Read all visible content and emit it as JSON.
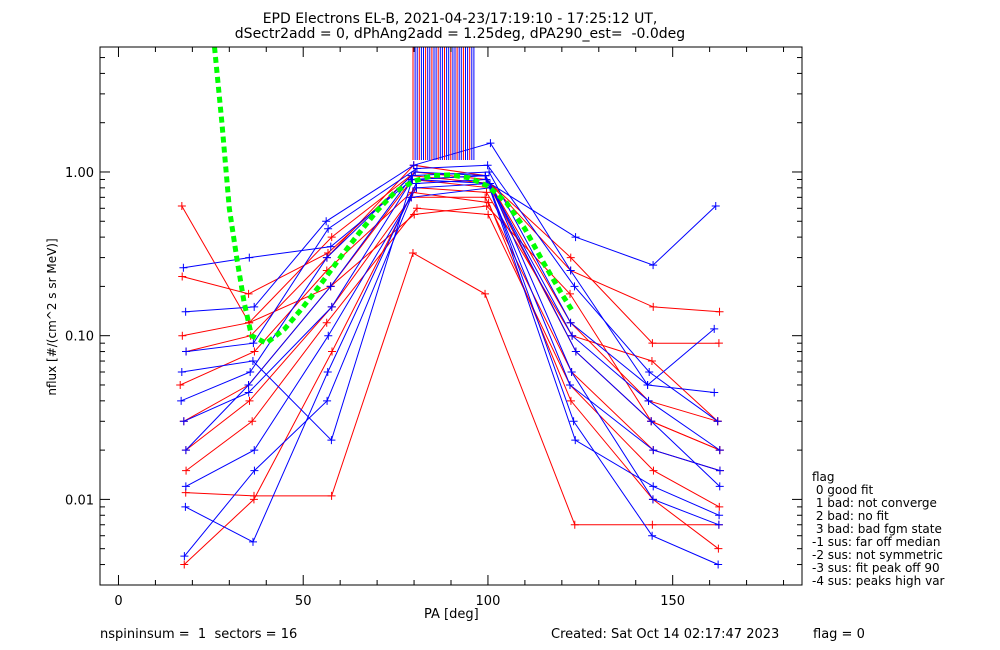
{
  "header": {
    "title_line1": "EPD Electrons EL-B, 2021-04-23/17:19:10 - 17:25:12 UT,",
    "title_line2": "dSectr2add = 0, dPhAng2add = 1.25deg, dPA290_est=  -0.0deg"
  },
  "footer": {
    "left": "nspininsum =  1  sectors = 16",
    "created": "Created: Sat Oct 14 02:17:47 2023",
    "flag": "flag = 0"
  },
  "legend": {
    "title": "flag",
    "items": [
      " 0 good fit",
      " 1 bad: not converge",
      " 2 bad: no fit",
      " 3 bad: bad fgm state",
      "-1 sus: far off median",
      "-2 sus: not symmetric",
      "-3 sus: fit peak off 90",
      "-4 sus: peaks high var"
    ]
  },
  "colors": {
    "series_a": "#ff0000",
    "series_b": "#0000ff",
    "fit": "#00ff00",
    "axes": "#000000"
  },
  "chart_data": {
    "type": "line",
    "xlabel": "PA [deg]",
    "ylabel": "nflux [#/(cm^2 s sr MeV)]",
    "xlim": [
      -5,
      185
    ],
    "ylim": [
      0.003,
      5.8
    ],
    "yscale": "log",
    "xticks": [
      0,
      50,
      100,
      150
    ],
    "yticks": [
      0.01,
      0.1,
      1.0
    ],
    "ytick_labels": [
      "0.01",
      "0.10",
      "1.00"
    ],
    "pa_bins": [
      17.5,
      36,
      57,
      80,
      100,
      123,
      144,
      162
    ],
    "series": [
      {
        "color": "red",
        "values": [
          0.62,
          0.12,
          0.2,
          0.55,
          0.62,
          0.18,
          0.03,
          0.02
        ]
      },
      {
        "color": "red",
        "values": [
          0.011,
          0.0105,
          0.0105,
          0.32,
          0.18,
          0.007,
          0.007,
          0.007
        ]
      },
      {
        "color": "red",
        "values": [
          0.23,
          0.18,
          0.32,
          0.95,
          0.85,
          0.25,
          0.15,
          0.14
        ]
      },
      {
        "color": "red",
        "values": [
          0.05,
          0.08,
          0.25,
          0.8,
          0.75,
          0.1,
          0.07,
          0.03
        ]
      },
      {
        "color": "red",
        "values": [
          0.02,
          0.04,
          0.15,
          0.7,
          0.7,
          0.06,
          0.02,
          0.015
        ]
      },
      {
        "color": "red",
        "values": [
          0.03,
          0.05,
          0.2,
          0.9,
          0.8,
          0.08,
          0.03,
          0.02
        ]
      },
      {
        "color": "red",
        "values": [
          0.015,
          0.03,
          0.12,
          0.6,
          0.55,
          0.05,
          0.015,
          0.009
        ]
      },
      {
        "color": "red",
        "values": [
          0.08,
          0.1,
          0.3,
          1.1,
          0.95,
          0.12,
          0.04,
          0.03
        ]
      },
      {
        "color": "red",
        "values": [
          0.004,
          0.01,
          0.08,
          0.75,
          0.65,
          0.04,
          0.01,
          0.005
        ]
      },
      {
        "color": "red",
        "values": [
          0.1,
          0.12,
          0.4,
          1.0,
          0.9,
          0.3,
          0.09,
          0.09
        ]
      },
      {
        "color": "blue",
        "values": [
          0.26,
          0.3,
          0.35,
          0.9,
          0.85,
          0.4,
          0.27,
          0.62
        ]
      },
      {
        "color": "blue",
        "values": [
          0.14,
          0.15,
          0.5,
          1.1,
          1.5,
          0.25,
          0.05,
          0.11
        ]
      },
      {
        "color": "blue",
        "values": [
          0.009,
          0.0055,
          0.06,
          0.85,
          0.9,
          0.05,
          0.02,
          0.015
        ]
      },
      {
        "color": "blue",
        "values": [
          0.06,
          0.07,
          0.023,
          0.9,
          0.95,
          0.023,
          0.012,
          0.008
        ]
      },
      {
        "color": "blue",
        "values": [
          0.02,
          0.05,
          0.2,
          1.0,
          0.95,
          0.08,
          0.03,
          0.012
        ]
      },
      {
        "color": "blue",
        "values": [
          0.04,
          0.06,
          0.3,
          0.95,
          1.0,
          0.12,
          0.05,
          0.045
        ]
      },
      {
        "color": "blue",
        "values": [
          0.012,
          0.02,
          0.1,
          0.8,
          0.85,
          0.06,
          0.01,
          0.007
        ]
      },
      {
        "color": "blue",
        "values": [
          0.08,
          0.09,
          0.45,
          1.05,
          1.1,
          0.2,
          0.06,
          0.03
        ]
      },
      {
        "color": "blue",
        "values": [
          0.03,
          0.045,
          0.15,
          0.9,
          0.95,
          0.1,
          0.04,
          0.02
        ]
      },
      {
        "color": "blue",
        "values": [
          0.0045,
          0.015,
          0.04,
          0.7,
          0.8,
          0.03,
          0.006,
          0.004
        ]
      }
    ],
    "fit_curve": {
      "x": [
        26,
        28,
        30,
        32,
        34,
        36,
        40,
        45,
        50,
        55,
        60,
        65,
        70,
        75,
        80,
        85,
        90,
        95,
        100,
        105,
        110,
        115,
        120,
        123
      ],
      "y": [
        5.8,
        2.0,
        0.6,
        0.3,
        0.16,
        0.1,
        0.09,
        0.11,
        0.15,
        0.21,
        0.3,
        0.42,
        0.58,
        0.76,
        0.88,
        0.95,
        0.96,
        0.92,
        0.82,
        0.65,
        0.45,
        0.28,
        0.18,
        0.14
      ]
    },
    "grid": false,
    "legend_position": "right"
  }
}
